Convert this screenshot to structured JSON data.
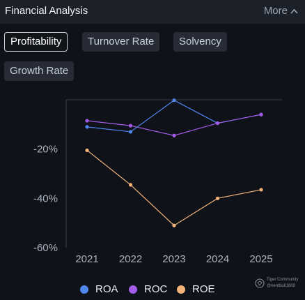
{
  "header": {
    "title": "Financial Analysis",
    "more_label": "More"
  },
  "tabs": [
    {
      "label": "Profitability",
      "active": true
    },
    {
      "label": "Turnover Rate",
      "active": false
    },
    {
      "label": "Solvency",
      "active": false
    },
    {
      "label": "Growth Rate",
      "active": false
    }
  ],
  "chart_data": {
    "type": "line",
    "categories": [
      "2021",
      "2022",
      "2023",
      "2024",
      "2025"
    ],
    "series": [
      {
        "name": "ROA",
        "color": "#4f86ef",
        "values": [
          -11,
          -13,
          -0.2,
          -9.5,
          -6
        ]
      },
      {
        "name": "ROC",
        "color": "#a35ce8",
        "values": [
          -8.5,
          -10.5,
          -14.5,
          -9.5,
          -6
        ]
      },
      {
        "name": "ROE",
        "color": "#f2b27a",
        "values": [
          -20.5,
          -34.5,
          -51,
          -40,
          -36.5
        ]
      }
    ],
    "yticks": [
      "-20%",
      "-40%",
      "-60%"
    ],
    "ytick_values": [
      -20,
      -40,
      -60
    ],
    "ylim": [
      -60,
      0
    ],
    "grid": false,
    "legend_position": "bottom-center"
  },
  "watermark": {
    "brand": "Tiger Community",
    "handle": "@nerdbull1669"
  }
}
